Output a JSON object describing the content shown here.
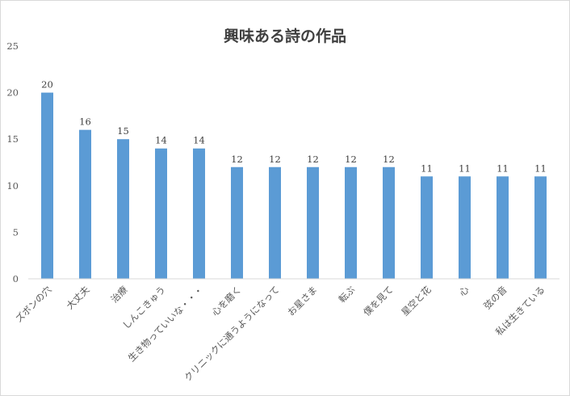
{
  "chart_data": {
    "type": "bar",
    "title": "興味ある詩の作品",
    "xlabel": "",
    "ylabel": "",
    "categories": [
      "ズボンの穴",
      "大丈夫",
      "治療",
      "しんこきゅう",
      "生き物っていいな・・・",
      "心を磨く",
      "クリニックに通うようになって",
      "お星さま",
      "転ぶ",
      "僕を見て",
      "星空と花",
      "心",
      "弦の音",
      "私は生きている"
    ],
    "values": [
      20,
      16,
      15,
      14,
      14,
      12,
      12,
      12,
      12,
      12,
      11,
      11,
      11,
      11
    ],
    "ylim": [
      0,
      25
    ],
    "yticks": [
      0,
      5,
      10,
      15,
      20,
      25
    ],
    "grid": false,
    "legend": "none",
    "data_labels": true,
    "colors": {
      "bar": "#5b9bd5",
      "axis": "#d9d9d9",
      "text": "#595959",
      "title": "#404040"
    }
  }
}
